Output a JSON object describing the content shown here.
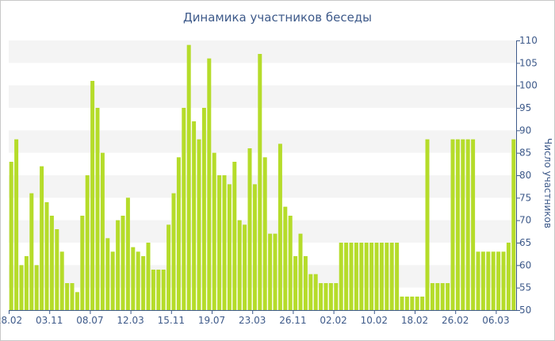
{
  "chart_data": {
    "type": "bar",
    "title": "Динамика участников беседы",
    "xlabel": "",
    "ylabel": "Число участников",
    "ylim": [
      50,
      110
    ],
    "y_ticks": [
      50,
      55,
      60,
      65,
      70,
      75,
      80,
      85,
      90,
      95,
      100,
      105,
      110
    ],
    "y_axis_position": "right",
    "x_tick_labels": [
      {
        "index": 0,
        "label": "28.02"
      },
      {
        "index": 8,
        "label": "03.11"
      },
      {
        "index": 16,
        "label": "08.07"
      },
      {
        "index": 24,
        "label": "12.03"
      },
      {
        "index": 32,
        "label": "15.11"
      },
      {
        "index": 40,
        "label": "19.07"
      },
      {
        "index": 48,
        "label": "23.03"
      },
      {
        "index": 56,
        "label": "26.11"
      },
      {
        "index": 64,
        "label": "02.02"
      },
      {
        "index": 72,
        "label": "10.02"
      },
      {
        "index": 80,
        "label": "18.02"
      },
      {
        "index": 88,
        "label": "26.02"
      },
      {
        "index": 96,
        "label": "06.03"
      }
    ],
    "grid": "alternating horizontal bands",
    "bar_color": "#b5dc2a",
    "values": [
      83,
      88,
      60,
      62,
      76,
      60,
      82,
      74,
      71,
      68,
      63,
      56,
      56,
      54,
      71,
      80,
      101,
      95,
      85,
      66,
      63,
      70,
      71,
      75,
      64,
      63,
      62,
      65,
      59,
      59,
      59,
      69,
      76,
      84,
      95,
      109,
      92,
      88,
      95,
      106,
      85,
      80,
      80,
      78,
      83,
      70,
      69,
      86,
      78,
      107,
      84,
      67,
      67,
      87,
      73,
      71,
      62,
      67,
      62,
      58,
      58,
      56,
      56,
      56,
      56,
      65,
      65,
      65,
      65,
      65,
      65,
      65,
      65,
      65,
      65,
      65,
      65,
      53,
      53,
      53,
      53,
      53,
      88,
      56,
      56,
      56,
      56,
      88,
      88,
      88,
      88,
      88,
      63,
      63,
      63,
      63,
      63,
      63,
      65,
      88
    ]
  },
  "colors": {
    "text": "#3e5a8a",
    "band": "#f4f4f4",
    "axis": "#3e5a8a"
  }
}
